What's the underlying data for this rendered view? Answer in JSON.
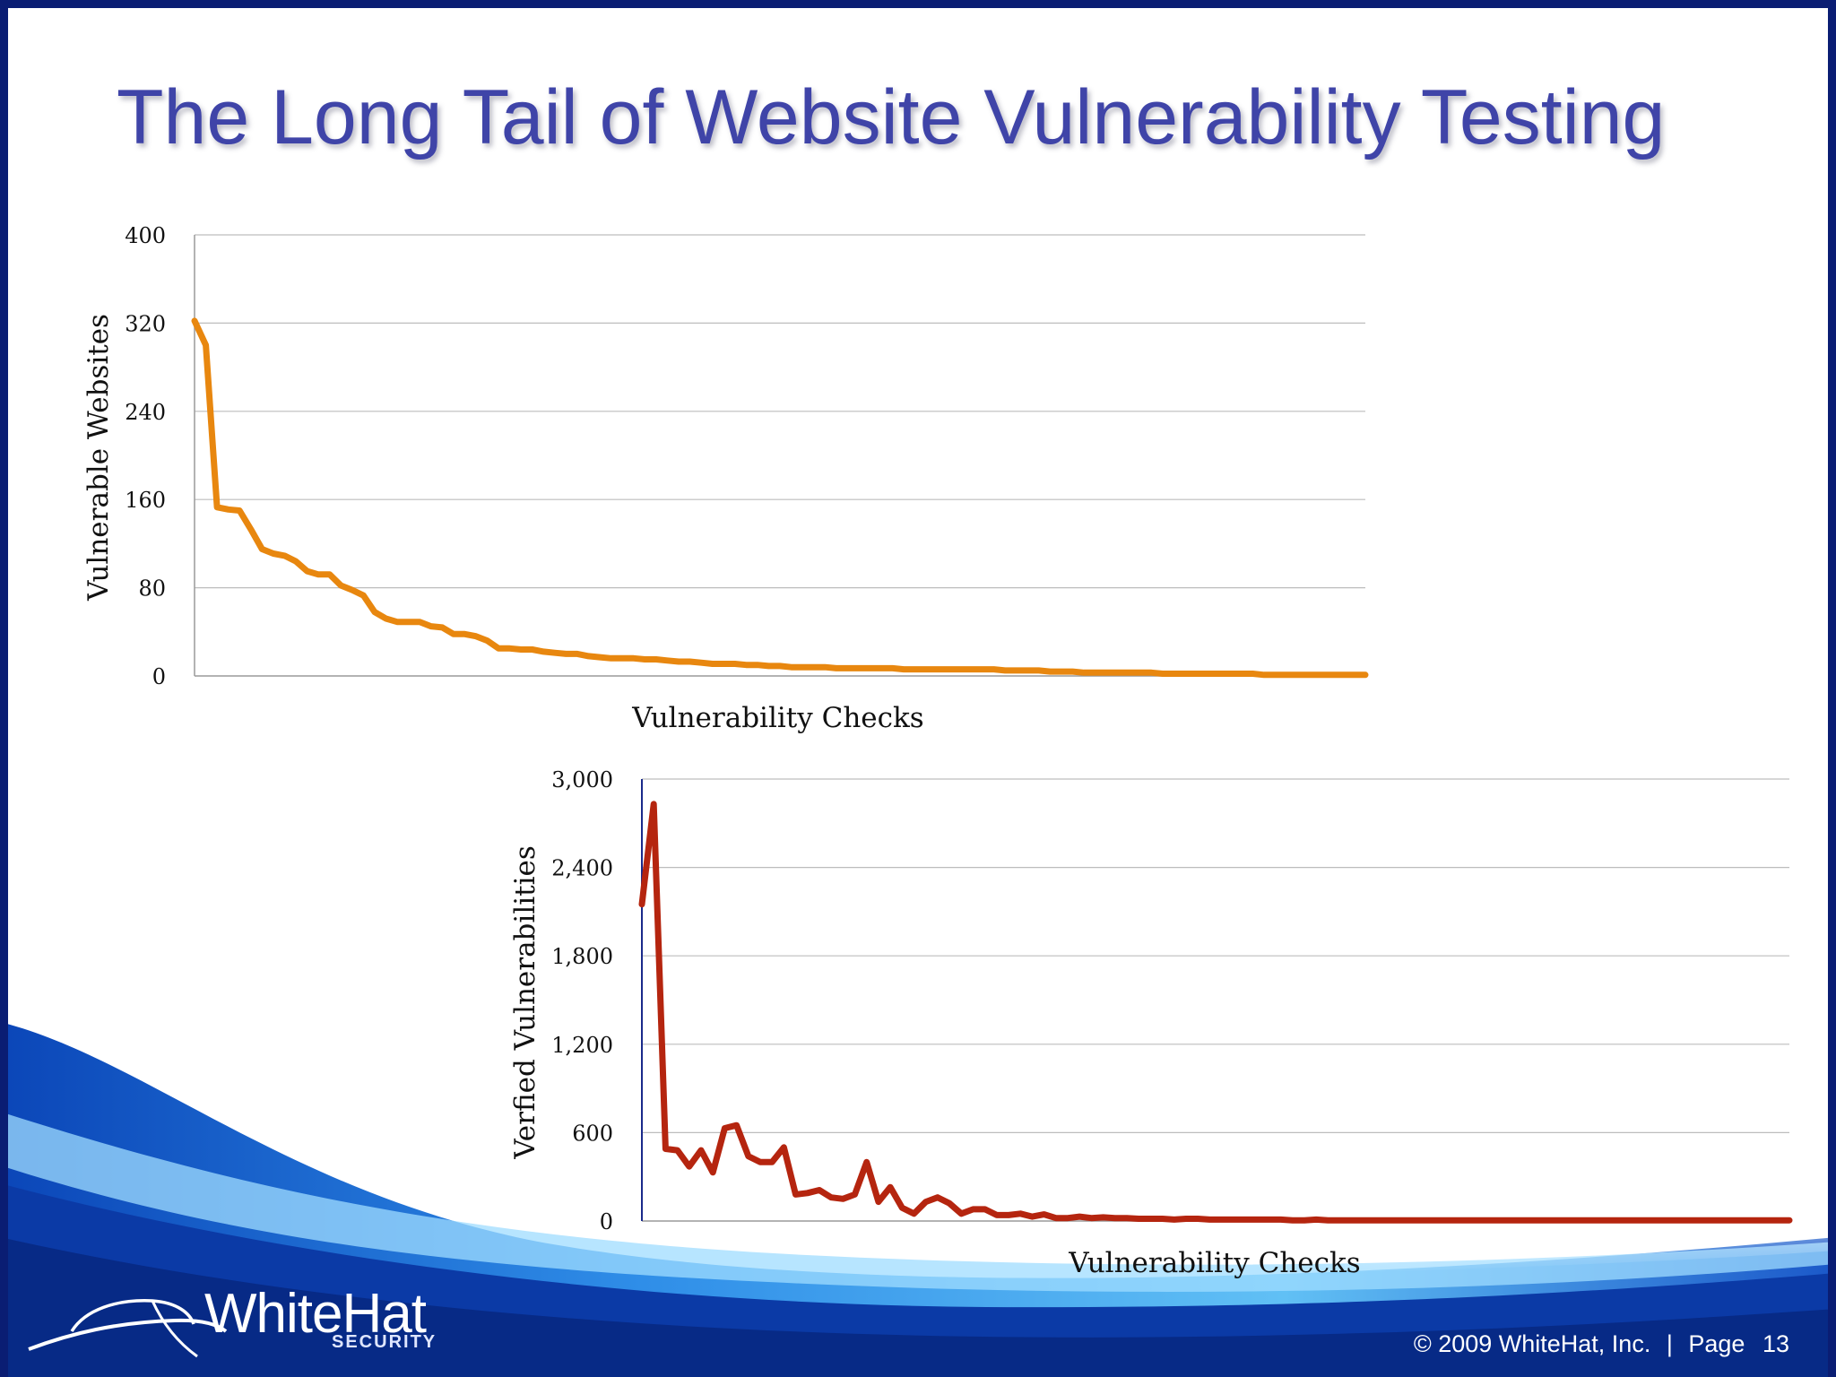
{
  "slide": {
    "title": "The Long Tail of Website Vulnerability Testing",
    "brand": {
      "name": "WhiteHat",
      "subtitle": "SECURITY",
      "logo": "whitehat-swoosh-logo"
    },
    "footer": {
      "copyright": "© 2009 WhiteHat, Inc.",
      "separator": "|",
      "page_label": "Page",
      "page_number": "13"
    },
    "colors": {
      "title": "#3f44a8",
      "frame": "#0a1d73",
      "wave": "#1c63d4"
    }
  },
  "chart_data": [
    {
      "type": "line",
      "title": "",
      "xlabel": "Vulnerability Checks",
      "ylabel": "Vulnerable Websites",
      "ylim": [
        0,
        400
      ],
      "yticks": [
        "0",
        "80",
        "160",
        "240",
        "320",
        "400"
      ],
      "grid": true,
      "color": "#e8870f",
      "series": [
        {
          "values": [
            322,
            300,
            153,
            151,
            150,
            133,
            115,
            111,
            109,
            104,
            95,
            92,
            92,
            82,
            78,
            73,
            58,
            52,
            49,
            49,
            49,
            45,
            44,
            38,
            38,
            36,
            32,
            25,
            25,
            24,
            24,
            22,
            21,
            20,
            20,
            18,
            17,
            16,
            16,
            16,
            15,
            15,
            14,
            13,
            13,
            12,
            11,
            11,
            11,
            10,
            10,
            9,
            9,
            8,
            8,
            8,
            8,
            7,
            7,
            7,
            7,
            7,
            7,
            6,
            6,
            6,
            6,
            6,
            6,
            6,
            6,
            6,
            5,
            5,
            5,
            5,
            4,
            4,
            4,
            3,
            3,
            3,
            3,
            3,
            3,
            3,
            2,
            2,
            2,
            2,
            2,
            2,
            2,
            2,
            2,
            1,
            1,
            1,
            1,
            1,
            1,
            1,
            1,
            1,
            1
          ]
        }
      ]
    },
    {
      "type": "line",
      "title": "",
      "xlabel": "Vulnerability Checks",
      "ylabel": "Verfied Vulnerabilities",
      "ylim": [
        0,
        3000
      ],
      "yticks": [
        "0",
        "600",
        "1,200",
        "1,800",
        "2,400",
        "3,000"
      ],
      "grid": true,
      "color": "#b5250f",
      "series": [
        {
          "values": [
            2150,
            2830,
            490,
            480,
            370,
            480,
            330,
            630,
            650,
            440,
            400,
            400,
            500,
            180,
            190,
            210,
            160,
            150,
            180,
            400,
            130,
            230,
            90,
            50,
            130,
            160,
            120,
            50,
            80,
            80,
            40,
            40,
            50,
            30,
            45,
            20,
            20,
            30,
            20,
            25,
            20,
            20,
            15,
            15,
            15,
            10,
            15,
            15,
            10,
            10,
            10,
            10,
            10,
            10,
            10,
            5,
            5,
            10,
            5,
            5,
            5,
            5,
            5,
            5,
            5,
            5,
            5,
            5,
            5,
            5,
            5,
            5,
            5,
            5,
            5,
            5,
            5,
            5,
            5,
            5,
            5,
            5,
            5,
            5,
            5,
            5,
            5,
            5,
            5,
            5,
            5,
            5,
            5,
            5,
            5,
            5,
            5,
            5
          ]
        }
      ]
    }
  ]
}
